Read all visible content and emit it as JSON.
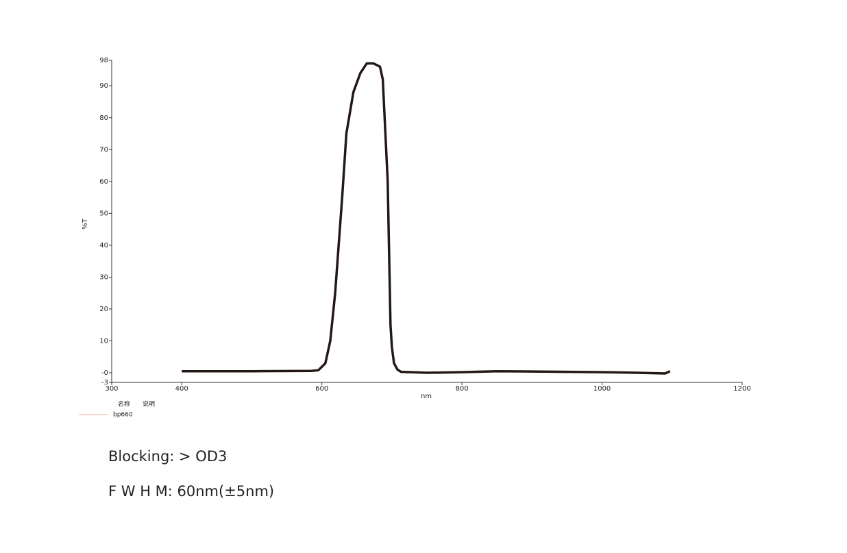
{
  "chart_data": {
    "type": "line",
    "xlabel": "nm",
    "ylabel": "%T",
    "xlim": [
      300,
      1200
    ],
    "xticks": [
      300,
      400,
      600,
      800,
      1000,
      1200
    ],
    "ylim": [
      -3,
      98
    ],
    "yticks": [
      -3,
      {
        "value": 0,
        "label": "-0"
      },
      10,
      20,
      30,
      40,
      50,
      60,
      70,
      80,
      90,
      98
    ],
    "legend_headers": [
      "名称",
      "说明"
    ],
    "series": [
      {
        "name": "bp660",
        "color": "#231815",
        "legend_color": "#e9a28f",
        "x": [
          400,
          500,
          585,
          595,
          605,
          612,
          619,
          624,
          629,
          635,
          645,
          655,
          664,
          674,
          683,
          687,
          694,
          698,
          700,
          703,
          708,
          713,
          750,
          800,
          850,
          900,
          950,
          1000,
          1050,
          1090,
          1097
        ],
        "values": [
          0.5,
          0.5,
          0.6,
          0.8,
          3,
          10,
          25,
          40,
          55,
          75,
          88,
          94,
          97,
          97,
          96,
          92,
          60,
          15,
          8,
          3,
          1,
          0.3,
          0,
          0.2,
          0.5,
          0.4,
          0.3,
          0.2,
          0,
          -0.2,
          0.5
        ]
      }
    ],
    "notes": [
      "Blocking:  > OD3",
      "F W H M:  60nm(±5nm)"
    ]
  }
}
